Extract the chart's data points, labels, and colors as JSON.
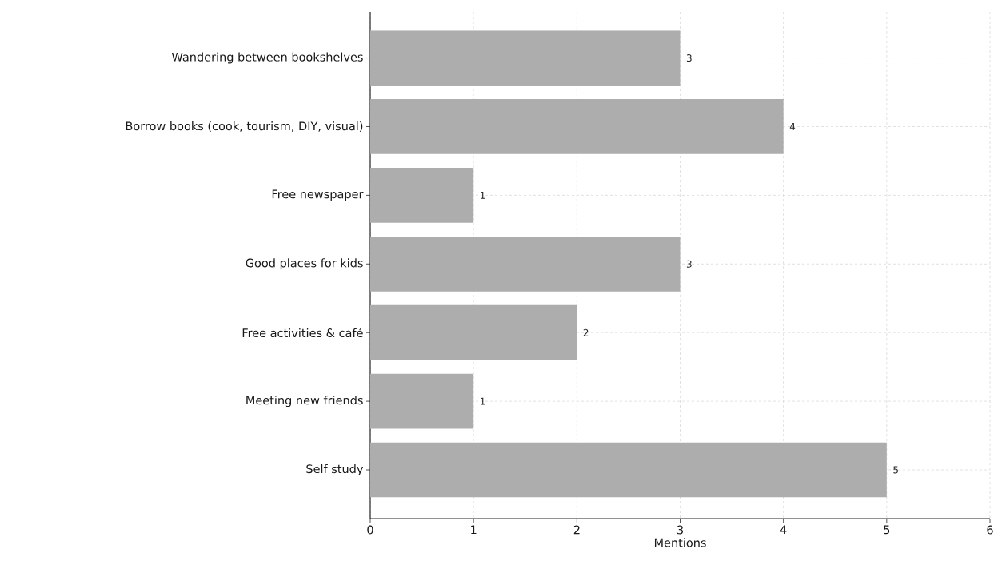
{
  "chart_data": {
    "type": "bar",
    "orientation": "horizontal",
    "xlabel": "Mentions",
    "categories": [
      "Wandering between bookshelves",
      "Borrow books (cook, tourism, DIY, visual)",
      "Free newspaper",
      "Good places for kids",
      "Free activities & café",
      "Meeting new friends",
      "Self study"
    ],
    "values": [
      3,
      4,
      1,
      3,
      2,
      1,
      5
    ],
    "color": "#adadad",
    "xlim": [
      0,
      6
    ],
    "xticks": [
      0,
      1,
      2,
      3,
      4,
      5,
      6
    ],
    "grid": true,
    "data_labels": true
  }
}
